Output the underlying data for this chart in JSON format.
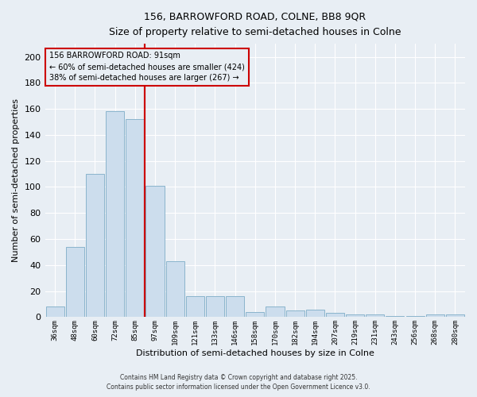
{
  "title": "156, BARROWFORD ROAD, COLNE, BB8 9QR",
  "subtitle": "Size of property relative to semi-detached houses in Colne",
  "xlabel": "Distribution of semi-detached houses by size in Colne",
  "ylabel": "Number of semi-detached properties",
  "bar_labels": [
    "36sqm",
    "48sqm",
    "60sqm",
    "72sqm",
    "85sqm",
    "97sqm",
    "109sqm",
    "121sqm",
    "133sqm",
    "146sqm",
    "158sqm",
    "170sqm",
    "182sqm",
    "194sqm",
    "207sqm",
    "219sqm",
    "231sqm",
    "243sqm",
    "256sqm",
    "268sqm",
    "280sqm"
  ],
  "bar_values": [
    8,
    54,
    110,
    158,
    152,
    101,
    43,
    16,
    16,
    16,
    4,
    8,
    5,
    6,
    3,
    2,
    2,
    1,
    1,
    2,
    2
  ],
  "bar_color": "#ccdded",
  "bar_edge_color": "#8ab4cc",
  "vline_x_idx": 4.5,
  "vline_color": "#cc0000",
  "ylim": [
    0,
    210
  ],
  "yticks": [
    0,
    20,
    40,
    60,
    80,
    100,
    120,
    140,
    160,
    180,
    200
  ],
  "annotation_title": "156 BARROWFORD ROAD: 91sqm",
  "annotation_line1": "← 60% of semi-detached houses are smaller (424)",
  "annotation_line2": "38% of semi-detached houses are larger (267) →",
  "annotation_box_color": "#cc0000",
  "footer1": "Contains HM Land Registry data © Crown copyright and database right 2025.",
  "footer2": "Contains public sector information licensed under the Open Government Licence v3.0.",
  "background_color": "#e8eef4",
  "grid_color": "#ffffff",
  "figsize": [
    6.0,
    5.0
  ],
  "dpi": 100
}
